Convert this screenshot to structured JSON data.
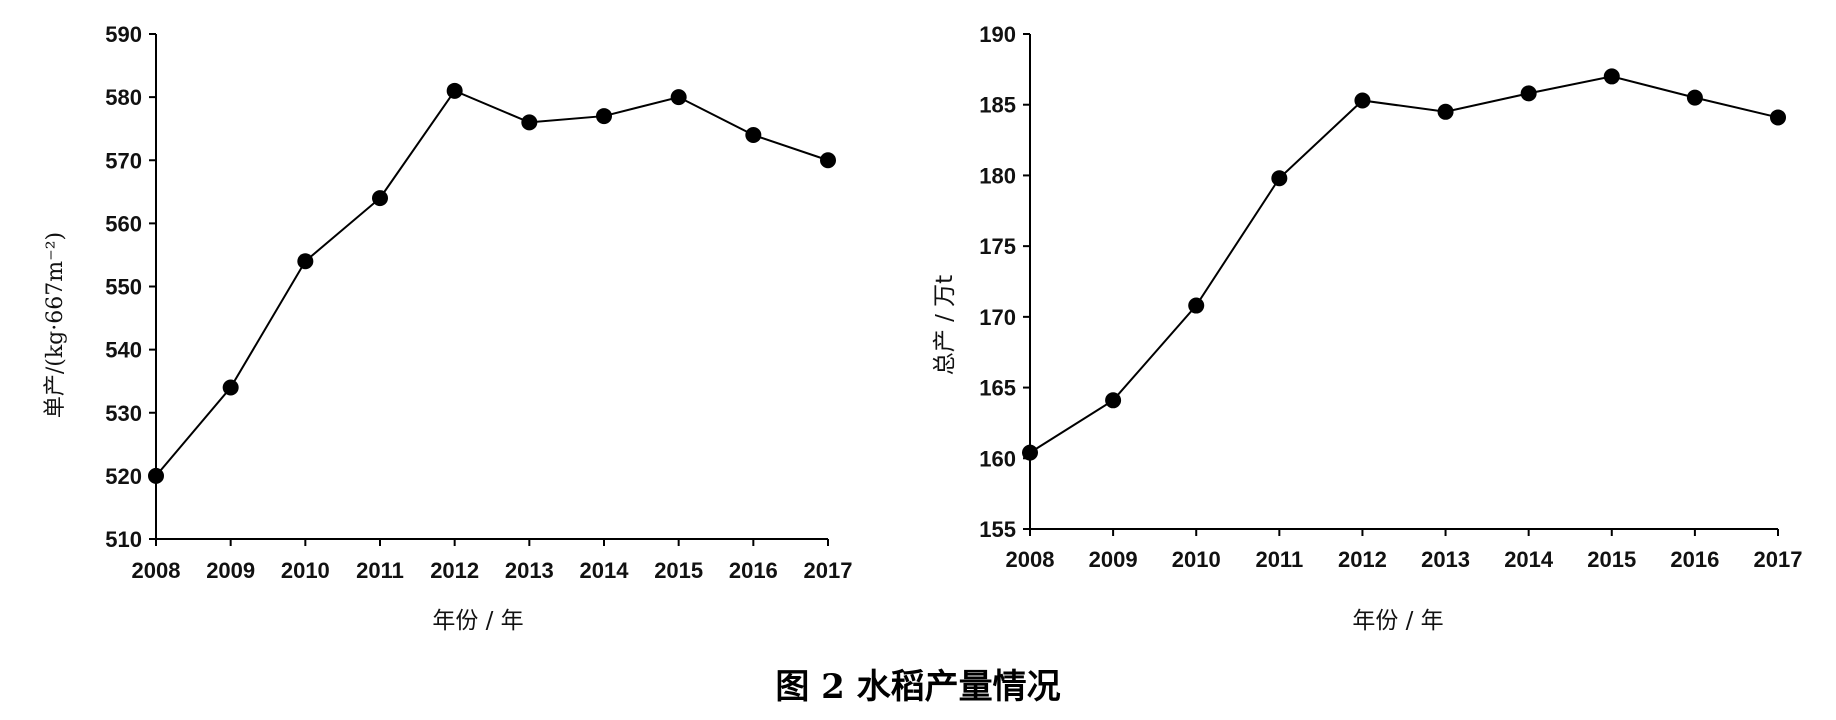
{
  "caption": "图 2    水稻产量情况",
  "chart_data": [
    {
      "type": "line",
      "xlabel": "年份 / 年",
      "ylabel": "单产/(kg·667m⁻²)",
      "x": [
        2008,
        2009,
        2010,
        2011,
        2012,
        2013,
        2014,
        2015,
        2016,
        2017
      ],
      "ylim": [
        510,
        590
      ],
      "yticks": [
        510,
        520,
        530,
        540,
        550,
        560,
        570,
        580,
        590
      ],
      "series": [
        {
          "values": [
            520,
            534,
            554,
            564,
            581,
            576,
            577,
            580,
            574,
            570
          ]
        }
      ],
      "color": "#000000",
      "grid": false
    },
    {
      "type": "line",
      "xlabel": "年份 / 年",
      "ylabel": "总产 / 万t",
      "x": [
        2008,
        2009,
        2010,
        2011,
        2012,
        2013,
        2014,
        2015,
        2016,
        2017
      ],
      "ylim": [
        155,
        190
      ],
      "yticks": [
        155,
        160,
        165,
        170,
        175,
        180,
        185,
        190
      ],
      "series": [
        {
          "values": [
            160.4,
            164.1,
            170.8,
            179.8,
            185.3,
            184.5,
            185.8,
            187.0,
            185.5,
            184.1
          ]
        }
      ],
      "color": "#000000",
      "grid": false
    }
  ]
}
